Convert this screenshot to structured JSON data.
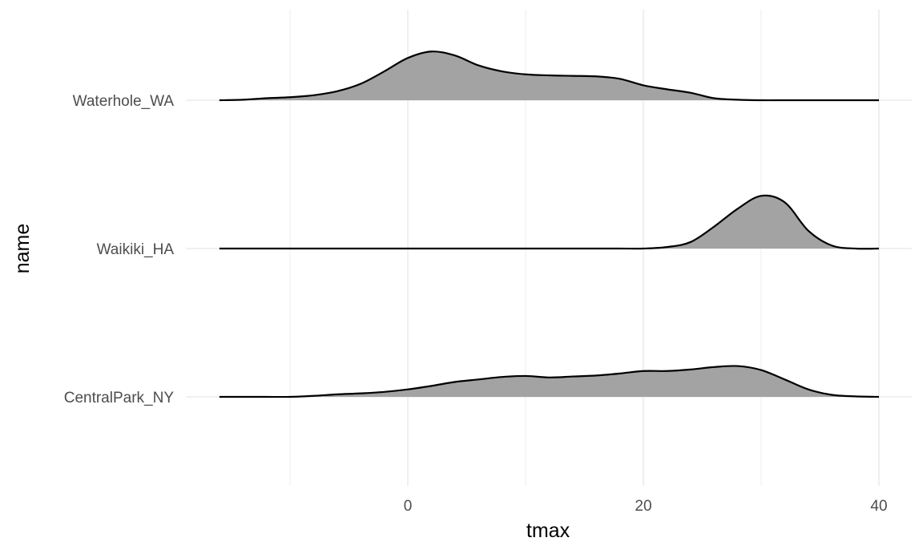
{
  "chart_data": {
    "type": "area",
    "subtype": "ridgeline",
    "xlabel": "tmax",
    "ylabel": "name",
    "xlim": [
      -16,
      42
    ],
    "x_ticks": [
      0,
      20,
      40
    ],
    "x_tick_labels": [
      "0",
      "20",
      "40"
    ],
    "x_minor_ticks": [
      -10,
      10,
      30
    ],
    "categories": [
      "Waterhole_WA",
      "Waikiki_HA",
      "CentralPark_NY"
    ],
    "grid": true,
    "fill_color": "#a3a3a3",
    "line_color": "#000000",
    "x": [
      -16,
      -14,
      -12,
      -10,
      -8,
      -6,
      -4,
      -2,
      0,
      2,
      4,
      6,
      8,
      10,
      12,
      14,
      16,
      18,
      20,
      22,
      24,
      26,
      28,
      30,
      32,
      34,
      36,
      38,
      40
    ],
    "series": [
      {
        "name": "Waterhole_WA",
        "values": [
          0,
          0.01,
          0.04,
          0.06,
          0.1,
          0.18,
          0.33,
          0.58,
          0.85,
          0.98,
          0.9,
          0.7,
          0.58,
          0.52,
          0.5,
          0.49,
          0.48,
          0.43,
          0.3,
          0.22,
          0.15,
          0.04,
          0.01,
          0,
          0,
          0,
          0,
          0,
          0
        ]
      },
      {
        "name": "Waikiki_HA",
        "values": [
          0,
          0,
          0,
          0,
          0,
          0,
          0,
          0,
          0,
          0,
          0,
          0,
          0,
          0,
          0,
          0,
          0,
          0,
          0,
          0.03,
          0.13,
          0.44,
          0.8,
          1.06,
          0.93,
          0.36,
          0.06,
          0,
          0
        ]
      },
      {
        "name": "CentralPark_NY",
        "values": [
          0,
          0,
          0,
          0,
          0.02,
          0.05,
          0.07,
          0.1,
          0.15,
          0.22,
          0.3,
          0.35,
          0.4,
          0.42,
          0.39,
          0.41,
          0.43,
          0.47,
          0.52,
          0.52,
          0.55,
          0.6,
          0.62,
          0.54,
          0.35,
          0.15,
          0.04,
          0.01,
          0
        ]
      }
    ]
  }
}
